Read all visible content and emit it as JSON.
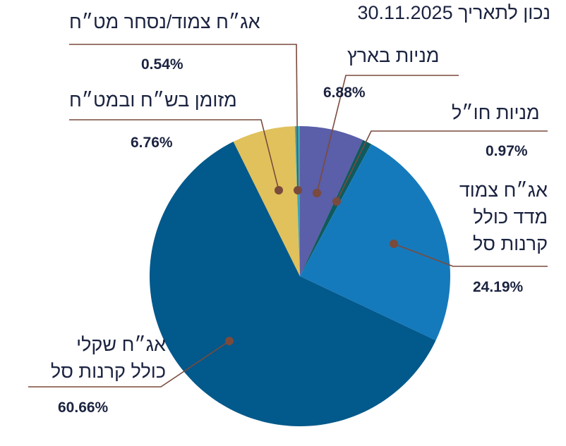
{
  "chart_data": {
    "type": "pie",
    "title": "נכון לתאריך 30.11.2025",
    "start": "top",
    "direction": "clockwise",
    "slices": [
      {
        "label": "מניות בארץ",
        "value": 6.88,
        "display": "6.88%",
        "color": "#5b5ea8"
      },
      {
        "label": "מניות חו״ל",
        "value": 0.97,
        "display": "0.97%",
        "color": "#0f5a5e"
      },
      {
        "label": "אג״ח צמוד מדד כולל קרנות סל",
        "lines": [
          "אג״ח צמוד",
          "מדד כולל",
          "קרנות סל"
        ],
        "value": 24.19,
        "display": "24.19%",
        "color": "#157abc"
      },
      {
        "label": "אג״ח שקלי כולל קרנות סל",
        "lines": [
          "אג״ח שקלי",
          "כולל קרנות סל"
        ],
        "value": 60.66,
        "display": "60.66%",
        "color": "#02598b"
      },
      {
        "label": "מזומן בש״ח ובמט״ח",
        "value": 6.76,
        "display": "6.76%",
        "color": "#e0c15c"
      },
      {
        "label": "אג״ח צמוד/נסחר מט״ח",
        "value": 0.54,
        "display": "0.54%",
        "color": "#3aa8b2"
      }
    ],
    "leader_color": "#7a4a3c"
  }
}
